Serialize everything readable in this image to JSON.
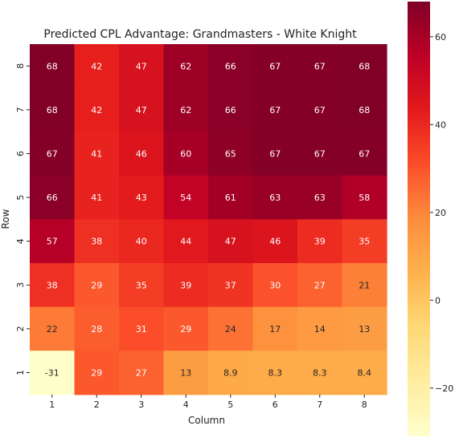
{
  "chart_data": {
    "type": "heatmap",
    "title": "Predicted CPL Advantage: Grandmasters - White Knight",
    "xlabel": "Column",
    "ylabel": "Row",
    "x_categories": [
      "1",
      "2",
      "3",
      "4",
      "5",
      "6",
      "7",
      "8"
    ],
    "y_categories": [
      "8",
      "7",
      "6",
      "5",
      "4",
      "3",
      "2",
      "1"
    ],
    "values": [
      [
        68,
        42,
        47,
        62,
        66,
        67,
        67,
        68
      ],
      [
        68,
        42,
        47,
        62,
        66,
        67,
        67,
        68
      ],
      [
        67,
        41,
        46,
        60,
        65,
        67,
        67,
        67
      ],
      [
        66,
        41,
        43,
        54,
        61,
        63,
        63,
        58
      ],
      [
        57,
        38,
        40,
        44,
        47,
        46,
        39,
        35
      ],
      [
        38,
        29,
        35,
        39,
        37,
        30,
        27,
        21
      ],
      [
        22,
        28,
        31,
        29,
        24,
        17,
        14,
        13
      ],
      [
        -31,
        29,
        27,
        13,
        8.9,
        8.3,
        8.3,
        8.4
      ]
    ],
    "labels": [
      [
        "68",
        "42",
        "47",
        "62",
        "66",
        "67",
        "67",
        "68"
      ],
      [
        "68",
        "42",
        "47",
        "62",
        "66",
        "67",
        "67",
        "68"
      ],
      [
        "67",
        "41",
        "46",
        "60",
        "65",
        "67",
        "67",
        "67"
      ],
      [
        "66",
        "41",
        "43",
        "54",
        "61",
        "63",
        "63",
        "58"
      ],
      [
        "57",
        "38",
        "40",
        "44",
        "47",
        "46",
        "39",
        "35"
      ],
      [
        "38",
        "29",
        "35",
        "39",
        "37",
        "30",
        "27",
        "21"
      ],
      [
        "22",
        "28",
        "31",
        "29",
        "24",
        "17",
        "14",
        "13"
      ],
      [
        "-31",
        "29",
        "27",
        "13",
        "8.9",
        "8.3",
        "8.3",
        "8.4"
      ]
    ],
    "colormap": "YlOrRd",
    "vmin": -31,
    "vmax": 68,
    "colorbar_ticks": [
      -20,
      0,
      20,
      40,
      60
    ],
    "colorbar_tick_labels": [
      "−20",
      "0",
      "20",
      "40",
      "60"
    ]
  }
}
